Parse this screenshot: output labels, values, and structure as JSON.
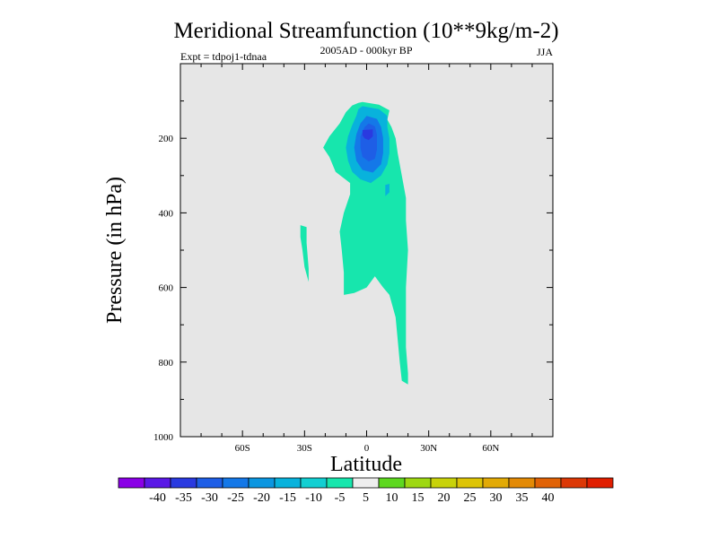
{
  "chart_data": {
    "type": "contour",
    "title": "Meridional Streamfunction (10**9kg/m-2)",
    "subtitle": "2005AD - 000kyr BP",
    "experiment": "Expt = tdpoj1-tdnaa",
    "season": "JJA",
    "xlabel": "Latitude",
    "ylabel": "Pressure (in hPa)",
    "xlim": [
      -90,
      90
    ],
    "ylim": [
      1000,
      0
    ],
    "x_ticks": [
      {
        "value": -60,
        "label": "60S"
      },
      {
        "value": -30,
        "label": "30S"
      },
      {
        "value": 0,
        "label": "0"
      },
      {
        "value": 30,
        "label": "30N"
      },
      {
        "value": 60,
        "label": "60N"
      }
    ],
    "y_ticks": [
      {
        "value": 200,
        "label": "200"
      },
      {
        "value": 400,
        "label": "400"
      },
      {
        "value": 600,
        "label": "600"
      },
      {
        "value": 800,
        "label": "800"
      },
      {
        "value": 1000,
        "label": "1000"
      }
    ],
    "background_color": "#e6e6e6",
    "colorbar": {
      "colors": [
        "#8a00e6",
        "#5a18e6",
        "#2a3ae0",
        "#1e5ee6",
        "#1478e8",
        "#0c96e0",
        "#08b2dc",
        "#12cfd2",
        "#17e6ad",
        "#eeeeee",
        "#5ed820",
        "#9ed812",
        "#c8d20a",
        "#ddc406",
        "#e2aa06",
        "#e38a06",
        "#e06206",
        "#dc3806",
        "#e01e00"
      ],
      "labels": [
        "-40",
        "-35",
        "-30",
        "-25",
        "-20",
        "-15",
        "-10",
        "-5",
        "5",
        "10",
        "15",
        "20",
        "25",
        "30",
        "35",
        "40"
      ]
    },
    "regions": [
      {
        "level": "-10 to -5",
        "color": "#17e6ad",
        "points": [
          [
            -2,
            103
          ],
          [
            6,
            110
          ],
          [
            11,
            125
          ],
          [
            10,
            150
          ],
          [
            12,
            170
          ],
          [
            14,
            200
          ],
          [
            15,
            240
          ],
          [
            17,
            300
          ],
          [
            19,
            360
          ],
          [
            19,
            420
          ],
          [
            20,
            500
          ],
          [
            19,
            600
          ],
          [
            19,
            700
          ],
          [
            19,
            760
          ],
          [
            20,
            830
          ],
          [
            20,
            860
          ],
          [
            17,
            850
          ],
          [
            16,
            800
          ],
          [
            15,
            740
          ],
          [
            14,
            680
          ],
          [
            12,
            640
          ],
          [
            11,
            620
          ],
          [
            8,
            600
          ],
          [
            4,
            570
          ],
          [
            0,
            600
          ],
          [
            -6,
            615
          ],
          [
            -11,
            620
          ],
          [
            -11,
            560
          ],
          [
            -12,
            500
          ],
          [
            -13,
            450
          ],
          [
            -11,
            400
          ],
          [
            -8,
            350
          ],
          [
            -8,
            320
          ],
          [
            -15,
            290
          ],
          [
            -18,
            250
          ],
          [
            -21,
            225
          ],
          [
            -18,
            195
          ],
          [
            -13,
            160
          ],
          [
            -10,
            130
          ],
          [
            -7,
            112
          ],
          [
            -4,
            105
          ]
        ]
      },
      {
        "level": "-30 to -10 (upper)",
        "color": "#08b2dc",
        "points": [
          [
            -2,
            114
          ],
          [
            6,
            122
          ],
          [
            10,
            140
          ],
          [
            10,
            170
          ],
          [
            11,
            200
          ],
          [
            11,
            240
          ],
          [
            10,
            270
          ],
          [
            7,
            300
          ],
          [
            2,
            320
          ],
          [
            -3,
            310
          ],
          [
            -7,
            290
          ],
          [
            -9,
            260
          ],
          [
            -10,
            225
          ],
          [
            -9,
            195
          ],
          [
            -7,
            165
          ],
          [
            -5,
            140
          ],
          [
            -4,
            122
          ]
        ]
      },
      {
        "level": "-30 to -10 (side)",
        "color": "#08b2dc",
        "points": [
          [
            9,
            325
          ],
          [
            11,
            322
          ],
          [
            11,
            345
          ],
          [
            9,
            355
          ]
        ]
      },
      {
        "level": "-30 to -10 (core)",
        "color": "#1478e8",
        "points": [
          [
            0,
            140
          ],
          [
            5,
            148
          ],
          [
            7,
            170
          ],
          [
            8,
            200
          ],
          [
            8,
            240
          ],
          [
            7,
            270
          ],
          [
            3,
            292
          ],
          [
            -2,
            285
          ],
          [
            -5,
            260
          ],
          [
            -6,
            225
          ],
          [
            -5,
            190
          ],
          [
            -3,
            160
          ]
        ]
      },
      {
        "level": "-30 to -10 (inner)",
        "color": "#1e5ee6",
        "points": [
          [
            1,
            160
          ],
          [
            4,
            168
          ],
          [
            5,
            190
          ],
          [
            5,
            230
          ],
          [
            4,
            255
          ],
          [
            1,
            262
          ],
          [
            -2,
            250
          ],
          [
            -3,
            225
          ],
          [
            -3,
            195
          ],
          [
            -1,
            170
          ]
        ]
      },
      {
        "level": "-30 to -25",
        "color": "#2a3ae0",
        "points": [
          [
            -2,
            178
          ],
          [
            3,
            176
          ],
          [
            3,
            195
          ],
          [
            1,
            205
          ],
          [
            -1,
            200
          ],
          [
            -2,
            192
          ]
        ]
      },
      {
        "level": "-10 to -5 (southern)",
        "color": "#17e6ad",
        "points": [
          [
            -32,
            433
          ],
          [
            -29,
            438
          ],
          [
            -29,
            480
          ],
          [
            -28,
            550
          ],
          [
            -28,
            585
          ],
          [
            -30,
            545
          ],
          [
            -31,
            500
          ],
          [
            -32,
            465
          ]
        ]
      }
    ]
  }
}
